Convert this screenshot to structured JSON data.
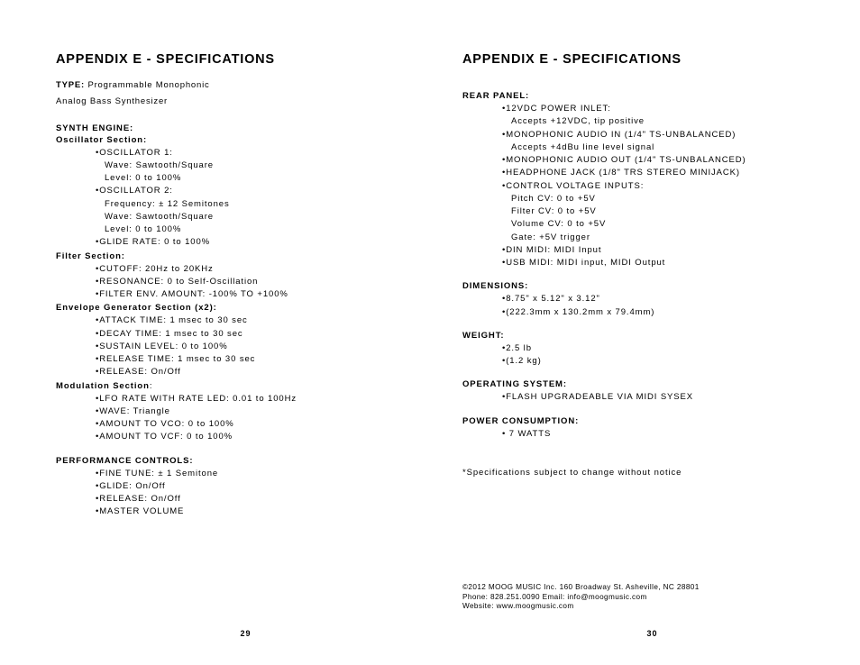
{
  "left": {
    "title": "APPENDIX E - SPECIFICATIONS",
    "type_label": "TYPE:",
    "type_value": "Programmable Monophonic",
    "type_value2": "Analog Bass Synthesizer",
    "sections": [
      {
        "head": "SYNTH ENGINE:",
        "sub": "Oscillator Section:",
        "items": [
          {
            "main": "OSCILLATOR 1:",
            "subs": [
              "Wave: Sawtooth/Square",
              "Level: 0 to 100%"
            ]
          },
          {
            "main": "OSCILLATOR 2:",
            "subs": [
              "Frequency: ± 12 Semitones",
              "Wave: Sawtooth/Square",
              "Level: 0 to 100%"
            ]
          },
          {
            "main": "GLIDE RATE: 0 to 100%"
          }
        ]
      },
      {
        "sub": "Filter Section:",
        "items": [
          {
            "main": "CUTOFF: 20Hz to 20KHz"
          },
          {
            "main": "RESONANCE: 0 to Self-Oscillation"
          },
          {
            "main": "FILTER ENV. AMOUNT: -100% TO +100%"
          }
        ]
      },
      {
        "sub": "Envelope Generator Section (x2):",
        "items": [
          {
            "main": "ATTACK TIME: 1 msec to 30 sec"
          },
          {
            "main": "DECAY TIME: 1 msec to 30 sec"
          },
          {
            "main": "SUSTAIN LEVEL: 0 to 100%"
          },
          {
            "main": "RELEASE TIME: 1 msec to 30 sec"
          },
          {
            "main": "RELEASE: On/Off"
          }
        ]
      },
      {
        "sub": "Modulation Section",
        "sub_suffix": ":",
        "items": [
          {
            "main": "LFO RATE WITH RATE LED: 0.01 to 100Hz"
          },
          {
            "main": "WAVE: Triangle"
          },
          {
            "main": "AMOUNT TO VCO: 0 to 100%"
          },
          {
            "main": "AMOUNT TO VCF: 0 to 100%"
          }
        ]
      },
      {
        "head": "PERFORMANCE CONTROLS:",
        "items": [
          {
            "main": "FINE TUNE: ± 1 Semitone"
          },
          {
            "main": "GLIDE: On/Off"
          },
          {
            "main": "RELEASE: On/Off"
          },
          {
            "main": "MASTER VOLUME"
          }
        ]
      }
    ],
    "page_num": "29"
  },
  "right": {
    "title": "APPENDIX E - SPECIFICATIONS",
    "sections": [
      {
        "head": "REAR PANEL:",
        "items": [
          {
            "main": "12VDC  POWER INLET:",
            "subs": [
              "Accepts +12VDC, tip positive"
            ]
          },
          {
            "main": "MONOPHONIC AUDIO IN (1/4\" TS-UNBALANCED)",
            "subs": [
              "Accepts +4dBu line level signal"
            ]
          },
          {
            "main": "MONOPHONIC AUDIO OUT (1/4\" TS-UNBALANCED)"
          },
          {
            "main": "HEADPHONE JACK (1/8\" TRS STEREO MINIJACK)"
          },
          {
            "main": "CONTROL VOLTAGE INPUTS:",
            "subs": [
              "Pitch CV: 0 to +5V",
              "Filter CV: 0 to +5V",
              "Volume CV: 0 to +5V",
              "Gate: +5V trigger"
            ]
          },
          {
            "main": "DIN MIDI: MIDI Input"
          },
          {
            "main": "USB MIDI: MIDI input, MIDI Output"
          }
        ]
      },
      {
        "head": "DIMENSIONS:",
        "items": [
          {
            "main": "8.75\" x 5.12\" x 3.12\""
          },
          {
            "main": "(222.3mm x 130.2mm x 79.4mm)"
          }
        ]
      },
      {
        "head": "WEIGHT:",
        "items": [
          {
            "main": "2.5 lb"
          },
          {
            "main": "(1.2 kg)"
          }
        ]
      },
      {
        "head": "OPERATING SYSTEM:",
        "items": [
          {
            "main": "FLASH UPGRADEABLE VIA MIDI SYSEX"
          }
        ]
      },
      {
        "head": "POWER CONSUMPTION:",
        "items": [
          {
            "main": " 7 WATTS"
          }
        ]
      }
    ],
    "footnote": "*Specifications subject to change without notice",
    "legal": "©2012 MOOG MUSIC Inc. 160 Broadway St. Asheville, NC 28801\nPhone: 828.251.0090 Email: info@moogmusic.com\nWebsite: www.moogmusic.com",
    "page_num": "30"
  }
}
